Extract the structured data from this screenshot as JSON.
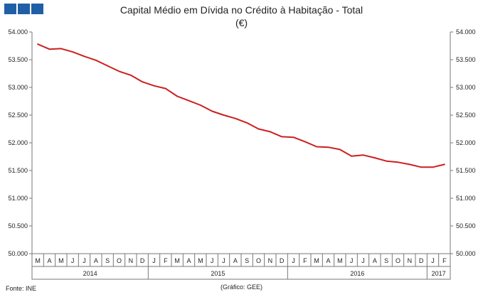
{
  "header": {
    "title": "Capital Médio em Dívida no Crédito à Habitação - Total",
    "subtitle": "(€)"
  },
  "footer": {
    "source": "Fonte: INE",
    "credit": "(Gráfico:  GEE)"
  },
  "colors": {
    "line": "#cc1f1f",
    "logo": "#1f5fa6"
  },
  "chart_data": {
    "type": "line",
    "title": "Capital Médio em Dívida no Crédito à Habitação - Total",
    "subtitle": "(€)",
    "ylim": [
      50000,
      54000
    ],
    "y_ticks": [
      "50.000",
      "50.500",
      "51.000",
      "51.500",
      "52.000",
      "52.500",
      "53.000",
      "53.500",
      "54.000"
    ],
    "y_tick_values": [
      50000,
      50500,
      51000,
      51500,
      52000,
      52500,
      53000,
      53500,
      54000
    ],
    "dual_y_axis": true,
    "grid": false,
    "x": [
      "2014-03",
      "2014-04",
      "2014-05",
      "2014-06",
      "2014-07",
      "2014-08",
      "2014-09",
      "2014-10",
      "2014-11",
      "2014-12",
      "2015-01",
      "2015-02",
      "2015-03",
      "2015-04",
      "2015-05",
      "2015-06",
      "2015-07",
      "2015-08",
      "2015-09",
      "2015-10",
      "2015-11",
      "2015-12",
      "2016-01",
      "2016-02",
      "2016-03",
      "2016-04",
      "2016-05",
      "2016-06",
      "2016-07",
      "2016-08",
      "2016-09",
      "2016-10",
      "2016-11",
      "2016-12",
      "2017-01",
      "2017-02"
    ],
    "month_labels": [
      "M",
      "A",
      "M",
      "J",
      "J",
      "A",
      "S",
      "O",
      "N",
      "D",
      "J",
      "F",
      "M",
      "A",
      "M",
      "J",
      "J",
      "A",
      "S",
      "O",
      "N",
      "D",
      "J",
      "F",
      "M",
      "A",
      "M",
      "J",
      "J",
      "A",
      "S",
      "O",
      "N",
      "D",
      "J",
      "F"
    ],
    "year_groups": [
      {
        "label": "2014",
        "start": 0,
        "end": 9
      },
      {
        "label": "2015",
        "start": 10,
        "end": 21
      },
      {
        "label": "2016",
        "start": 22,
        "end": 33
      },
      {
        "label": "2017",
        "start": 34,
        "end": 35
      }
    ],
    "series": [
      {
        "values": [
          53780,
          53690,
          53700,
          53640,
          53560,
          53490,
          53390,
          53290,
          53220,
          53100,
          53030,
          52980,
          52840,
          52760,
          52680,
          52570,
          52500,
          52440,
          52360,
          52250,
          52200,
          52110,
          52100,
          52020,
          51930,
          51920,
          51880,
          51760,
          51780,
          51730,
          51670,
          51650,
          51610,
          51560,
          51560,
          51610
        ]
      }
    ]
  }
}
